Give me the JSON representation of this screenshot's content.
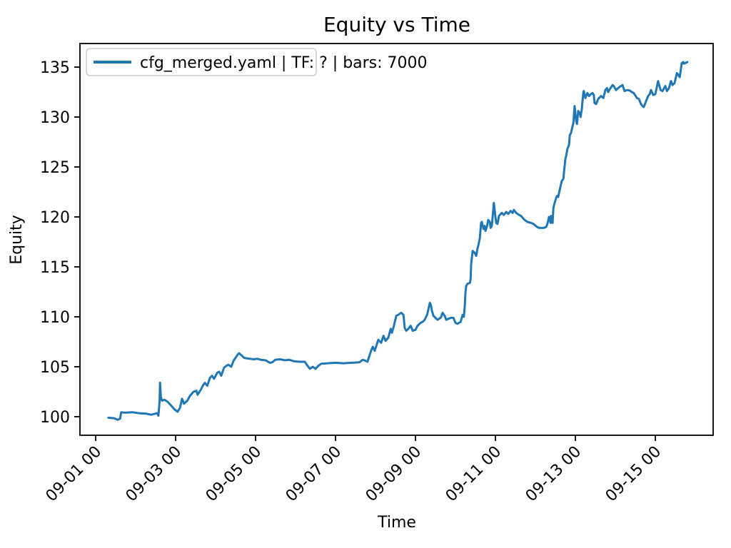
{
  "figure": {
    "background": "#ffffff"
  },
  "colors": {
    "line": "#1f77b4",
    "spine": "#000000",
    "text": "#000000",
    "legend_border": "#cccccc",
    "background": "#ffffff"
  },
  "chart_data": {
    "type": "line",
    "title": "Equity vs Time",
    "xlabel": "Time",
    "ylabel": "Equity",
    "grid": false,
    "legend_position": "upper left",
    "x_unit": "days since 09-01 00:00",
    "xlim": [
      -0.393,
      15.446
    ],
    "ylim": [
      98.14,
      137.36
    ],
    "x_ticks": [
      {
        "value": 0,
        "label": "09-01 00"
      },
      {
        "value": 2,
        "label": "09-03 00"
      },
      {
        "value": 4,
        "label": "09-05 00"
      },
      {
        "value": 6,
        "label": "09-07 00"
      },
      {
        "value": 8,
        "label": "09-09 00"
      },
      {
        "value": 10,
        "label": "09-11 00"
      },
      {
        "value": 12,
        "label": "09-13 00"
      },
      {
        "value": 14,
        "label": "09-15 00"
      }
    ],
    "y_ticks": [
      100,
      105,
      110,
      115,
      120,
      125,
      130,
      135
    ],
    "series": [
      {
        "name": "cfg_merged.yaml | TF: ? | bars: 7000",
        "color": "#1f77b4",
        "line_width": 3,
        "points": [
          [
            0.32,
            99.9
          ],
          [
            0.46,
            99.85
          ],
          [
            0.55,
            99.7
          ],
          [
            0.61,
            99.8
          ],
          [
            0.64,
            100.45
          ],
          [
            0.73,
            100.4
          ],
          [
            0.91,
            100.45
          ],
          [
            1.09,
            100.35
          ],
          [
            1.27,
            100.3
          ],
          [
            1.39,
            100.2
          ],
          [
            1.54,
            100.35
          ],
          [
            1.57,
            100.1
          ],
          [
            1.6,
            101.6
          ],
          [
            1.61,
            103.4
          ],
          [
            1.63,
            102.0
          ],
          [
            1.66,
            101.6
          ],
          [
            1.72,
            101.7
          ],
          [
            1.8,
            101.5
          ],
          [
            1.89,
            101.1
          ],
          [
            1.98,
            100.7
          ],
          [
            2.05,
            100.5
          ],
          [
            2.11,
            100.9
          ],
          [
            2.16,
            101.8
          ],
          [
            2.21,
            101.3
          ],
          [
            2.29,
            101.6
          ],
          [
            2.36,
            102.1
          ],
          [
            2.45,
            102.5
          ],
          [
            2.52,
            102.6
          ],
          [
            2.55,
            102.2
          ],
          [
            2.63,
            102.7
          ],
          [
            2.68,
            103.1
          ],
          [
            2.73,
            103.4
          ],
          [
            2.79,
            103.1
          ],
          [
            2.86,
            103.9
          ],
          [
            2.91,
            104.1
          ],
          [
            2.96,
            103.8
          ],
          [
            3.04,
            104.4
          ],
          [
            3.09,
            104.5
          ],
          [
            3.14,
            104.1
          ],
          [
            3.21,
            104.9
          ],
          [
            3.27,
            105.1
          ],
          [
            3.32,
            105.2
          ],
          [
            3.39,
            105.0
          ],
          [
            3.45,
            105.6
          ],
          [
            3.5,
            105.9
          ],
          [
            3.57,
            106.3
          ],
          [
            3.59,
            106.35
          ],
          [
            3.66,
            106.1
          ],
          [
            3.71,
            105.9
          ],
          [
            3.77,
            105.85
          ],
          [
            3.86,
            105.8
          ],
          [
            3.95,
            105.75
          ],
          [
            4.05,
            105.8
          ],
          [
            4.13,
            105.7
          ],
          [
            4.25,
            105.65
          ],
          [
            4.36,
            105.4
          ],
          [
            4.42,
            105.45
          ],
          [
            4.49,
            105.7
          ],
          [
            4.61,
            105.75
          ],
          [
            4.73,
            105.65
          ],
          [
            4.84,
            105.7
          ],
          [
            4.96,
            105.55
          ],
          [
            5.1,
            105.5
          ],
          [
            5.23,
            105.5
          ],
          [
            5.3,
            105.1
          ],
          [
            5.36,
            104.8
          ],
          [
            5.43,
            105.0
          ],
          [
            5.5,
            104.8
          ],
          [
            5.57,
            105.1
          ],
          [
            5.64,
            105.3
          ],
          [
            5.8,
            105.35
          ],
          [
            6.0,
            105.4
          ],
          [
            6.2,
            105.35
          ],
          [
            6.4,
            105.4
          ],
          [
            6.6,
            105.45
          ],
          [
            6.68,
            105.7
          ],
          [
            6.75,
            105.6
          ],
          [
            6.8,
            105.5
          ],
          [
            6.88,
            106.5
          ],
          [
            6.93,
            107.0
          ],
          [
            6.98,
            106.6
          ],
          [
            7.07,
            107.7
          ],
          [
            7.14,
            107.4
          ],
          [
            7.2,
            108.1
          ],
          [
            7.25,
            107.6
          ],
          [
            7.32,
            107.9
          ],
          [
            7.38,
            108.8
          ],
          [
            7.41,
            108.4
          ],
          [
            7.46,
            109.1
          ],
          [
            7.52,
            110.1
          ],
          [
            7.57,
            110.2
          ],
          [
            7.64,
            110.4
          ],
          [
            7.7,
            110.2
          ],
          [
            7.73,
            108.9
          ],
          [
            7.77,
            108.6
          ],
          [
            7.82,
            108.8
          ],
          [
            7.88,
            109.1
          ],
          [
            7.93,
            108.6
          ],
          [
            8.0,
            108.7
          ],
          [
            8.05,
            109.1
          ],
          [
            8.13,
            109.4
          ],
          [
            8.18,
            109.5
          ],
          [
            8.23,
            109.7
          ],
          [
            8.29,
            110.2
          ],
          [
            8.36,
            111.4
          ],
          [
            8.39,
            111.1
          ],
          [
            8.41,
            110.6
          ],
          [
            8.45,
            110.1
          ],
          [
            8.5,
            109.9
          ],
          [
            8.55,
            109.7
          ],
          [
            8.63,
            109.9
          ],
          [
            8.68,
            110.4
          ],
          [
            8.73,
            110.1
          ],
          [
            8.77,
            109.7
          ],
          [
            8.82,
            109.8
          ],
          [
            8.89,
            109.9
          ],
          [
            8.95,
            109.9
          ],
          [
            9.0,
            109.4
          ],
          [
            9.05,
            109.3
          ],
          [
            9.13,
            109.5
          ],
          [
            9.18,
            110.2
          ],
          [
            9.21,
            110.0
          ],
          [
            9.23,
            110.9
          ],
          [
            9.25,
            112.4
          ],
          [
            9.27,
            113.1
          ],
          [
            9.3,
            113.3
          ],
          [
            9.36,
            113.4
          ],
          [
            9.38,
            113.8
          ],
          [
            9.39,
            115.2
          ],
          [
            9.43,
            116.6
          ],
          [
            9.48,
            116.4
          ],
          [
            9.52,
            116.1
          ],
          [
            9.55,
            116.8
          ],
          [
            9.57,
            117.1
          ],
          [
            9.61,
            117.9
          ],
          [
            9.64,
            119.4
          ],
          [
            9.66,
            119.5
          ],
          [
            9.7,
            118.8
          ],
          [
            9.73,
            119.1
          ],
          [
            9.75,
            118.6
          ],
          [
            9.79,
            119.1
          ],
          [
            9.82,
            119.7
          ],
          [
            9.86,
            119.5
          ],
          [
            9.88,
            118.9
          ],
          [
            9.91,
            119.1
          ],
          [
            9.96,
            121.4
          ],
          [
            10.0,
            120.0
          ],
          [
            10.02,
            119.4
          ],
          [
            10.05,
            119.3
          ],
          [
            10.09,
            120.1
          ],
          [
            10.11,
            120.2
          ],
          [
            10.16,
            120.4
          ],
          [
            10.21,
            120.2
          ],
          [
            10.27,
            120.5
          ],
          [
            10.32,
            120.3
          ],
          [
            10.38,
            120.6
          ],
          [
            10.43,
            120.4
          ],
          [
            10.46,
            120.7
          ],
          [
            10.52,
            120.4
          ],
          [
            10.59,
            120.2
          ],
          [
            10.64,
            120.1
          ],
          [
            10.73,
            119.7
          ],
          [
            10.8,
            119.5
          ],
          [
            10.89,
            119.4
          ],
          [
            10.95,
            119.3
          ],
          [
            11.04,
            119.0
          ],
          [
            11.09,
            118.9
          ],
          [
            11.16,
            118.9
          ],
          [
            11.21,
            118.9
          ],
          [
            11.27,
            119.0
          ],
          [
            11.3,
            119.3
          ],
          [
            11.34,
            120.0
          ],
          [
            11.38,
            119.4
          ],
          [
            11.39,
            120.1
          ],
          [
            11.43,
            119.4
          ],
          [
            11.45,
            120.9
          ],
          [
            11.48,
            121.4
          ],
          [
            11.52,
            121.9
          ],
          [
            11.54,
            122.1
          ],
          [
            11.57,
            122.0
          ],
          [
            11.63,
            123.1
          ],
          [
            11.66,
            123.6
          ],
          [
            11.7,
            123.8
          ],
          [
            11.71,
            124.3
          ],
          [
            11.75,
            125.8
          ],
          [
            11.77,
            126.1
          ],
          [
            11.8,
            126.8
          ],
          [
            11.84,
            127.2
          ],
          [
            11.86,
            128.2
          ],
          [
            11.89,
            128.4
          ],
          [
            11.93,
            129.1
          ],
          [
            11.95,
            129.4
          ],
          [
            11.98,
            131.1
          ],
          [
            12.02,
            129.6
          ],
          [
            12.04,
            129.3
          ],
          [
            12.07,
            130.6
          ],
          [
            12.11,
            130.4
          ],
          [
            12.13,
            130.0
          ],
          [
            12.16,
            130.8
          ],
          [
            12.2,
            132.5
          ],
          [
            12.21,
            132.6
          ],
          [
            12.25,
            131.9
          ],
          [
            12.27,
            132.1
          ],
          [
            12.3,
            132.4
          ],
          [
            12.34,
            132.1
          ],
          [
            12.39,
            132.3
          ],
          [
            12.43,
            132.4
          ],
          [
            12.46,
            132.2
          ],
          [
            12.48,
            131.4
          ],
          [
            12.52,
            131.3
          ],
          [
            12.57,
            131.8
          ],
          [
            12.64,
            132.1
          ],
          [
            12.7,
            131.9
          ],
          [
            12.75,
            132.7
          ],
          [
            12.79,
            132.9
          ],
          [
            12.82,
            132.5
          ],
          [
            12.88,
            132.9
          ],
          [
            12.93,
            133.2
          ],
          [
            12.96,
            133.1
          ],
          [
            13.02,
            132.7
          ],
          [
            13.07,
            132.9
          ],
          [
            13.14,
            133.1
          ],
          [
            13.18,
            133.2
          ],
          [
            13.23,
            132.6
          ],
          [
            13.29,
            132.7
          ],
          [
            13.36,
            132.65
          ],
          [
            13.41,
            132.5
          ],
          [
            13.46,
            132.4
          ],
          [
            13.54,
            131.9
          ],
          [
            13.59,
            131.8
          ],
          [
            13.64,
            131.3
          ],
          [
            13.68,
            131.1
          ],
          [
            13.71,
            131.0
          ],
          [
            13.77,
            131.6
          ],
          [
            13.82,
            132.1
          ],
          [
            13.86,
            132.3
          ],
          [
            13.89,
            132.7
          ],
          [
            13.95,
            132.2
          ],
          [
            14.0,
            132.3
          ],
          [
            14.07,
            133.6
          ],
          [
            14.13,
            132.7
          ],
          [
            14.18,
            132.6
          ],
          [
            14.25,
            133.1
          ],
          [
            14.29,
            132.6
          ],
          [
            14.34,
            132.9
          ],
          [
            14.39,
            133.6
          ],
          [
            14.43,
            133.2
          ],
          [
            14.48,
            133.4
          ],
          [
            14.54,
            134.4
          ],
          [
            14.61,
            134.0
          ],
          [
            14.66,
            135.4
          ],
          [
            14.7,
            135.5
          ],
          [
            14.71,
            135.35
          ],
          [
            14.75,
            135.4
          ],
          [
            14.8,
            135.5
          ]
        ]
      }
    ]
  }
}
